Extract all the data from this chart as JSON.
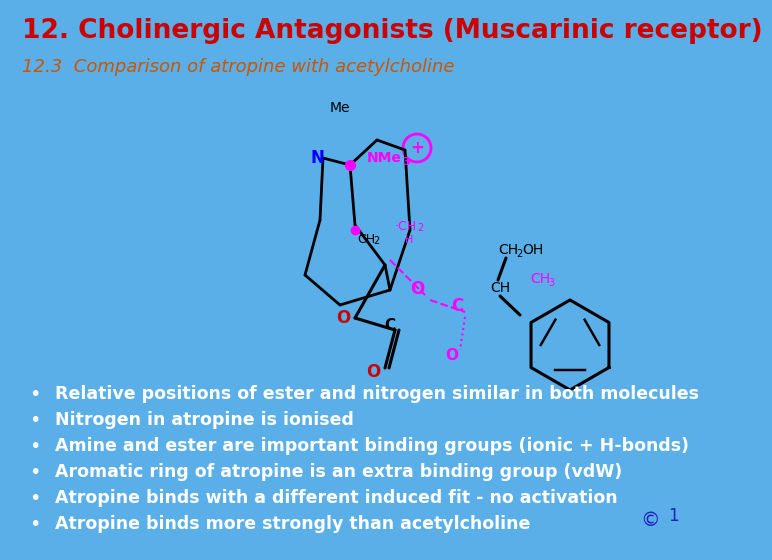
{
  "background_color": "#5aafe8",
  "title": "12. Cholinergic Antagonists (Muscarinic receptor)",
  "title_color": "#cc0000",
  "title_fontsize": 19,
  "subtitle": "12.3  Comparison of atropine with acetylcholine",
  "subtitle_color": "#cc5500",
  "subtitle_fontsize": 13,
  "bullet_points": [
    "Relative positions of ester and nitrogen similar in both molecules",
    "Nitrogen in atropine is ionised",
    "Amine and ester are important binding groups (ionic + H-bonds)",
    "Aromatic ring of atropine is an extra binding group (vdW)",
    "Atropine binds with a different induced fit - no activation",
    "Atropine binds more strongly than acetylcholine"
  ],
  "bullet_color": "#ffffff",
  "bullet_fontsize": 12.5,
  "copyright_color": "#2222bb"
}
